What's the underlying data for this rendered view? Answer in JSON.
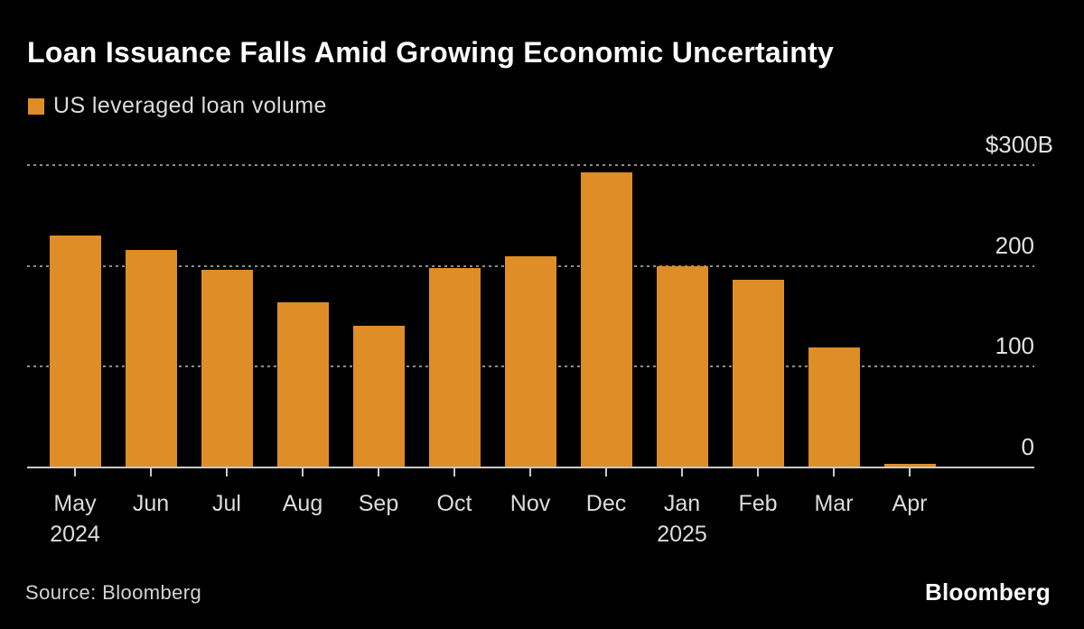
{
  "title": "Loan Issuance Falls Amid Growing Economic Uncertainty",
  "legend": {
    "label": "US leveraged loan volume"
  },
  "source": "Source: Bloomberg",
  "branding": "Bloomberg",
  "colors": {
    "background": "#000000",
    "bar": "#de8d27",
    "grid": "#8d8d8d",
    "axis": "#c9c9c9",
    "title_text": "#ffffff",
    "label_text": "#dcdcdc"
  },
  "y_axis": {
    "unit_label_top": "$300B",
    "labels": [
      {
        "text": "$300B",
        "value": 300
      },
      {
        "text": "200",
        "value": 200
      },
      {
        "text": "100",
        "value": 100
      },
      {
        "text": "0",
        "value": 0
      }
    ],
    "gridline_values": [
      300,
      200,
      100
    ]
  },
  "x_axis": {
    "labels": [
      {
        "month": "May",
        "year": "2024"
      },
      {
        "month": "Jun"
      },
      {
        "month": "Jul"
      },
      {
        "month": "Aug"
      },
      {
        "month": "Sep"
      },
      {
        "month": "Oct"
      },
      {
        "month": "Nov"
      },
      {
        "month": "Dec"
      },
      {
        "month": "Jan",
        "year": "2025"
      },
      {
        "month": "Feb"
      },
      {
        "month": "Mar"
      },
      {
        "month": "Apr"
      }
    ]
  },
  "chart_data": {
    "type": "bar",
    "title": "Loan Issuance Falls Amid Growing Economic Uncertainty",
    "series_name": "US leveraged loan volume",
    "unit": "USD billions",
    "categories": [
      "May 2024",
      "Jun",
      "Jul",
      "Aug",
      "Sep",
      "Oct",
      "Nov",
      "Dec",
      "Jan 2025",
      "Feb",
      "Mar",
      "Apr"
    ],
    "values": [
      230,
      216,
      196,
      164,
      141,
      198,
      210,
      293,
      200,
      186,
      119,
      4
    ],
    "ylim": [
      0,
      300
    ],
    "ylabel": "",
    "xlabel": "",
    "grid": "horizontal-dotted",
    "legend_position": "top-left",
    "bar_color": "#de8d27"
  }
}
